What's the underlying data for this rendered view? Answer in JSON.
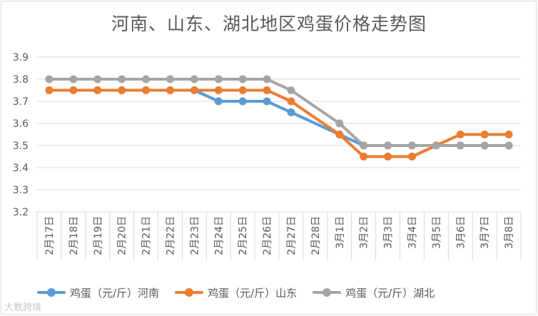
{
  "chart_data": {
    "type": "line",
    "title": "河南、山东、湖北地区鸡蛋价格走势图",
    "categories": [
      "2月17日",
      "2月18日",
      "2月19日",
      "2月20日",
      "2月21日",
      "2月22日",
      "2月23日",
      "2月24日",
      "2月25日",
      "2月26日",
      "2月27日",
      "2月28日",
      "3月1日",
      "3月2日",
      "3月3日",
      "3月4日",
      "3月5日",
      "3月6日",
      "3月7日",
      "3月8日"
    ],
    "ylim": [
      3.2,
      3.9
    ],
    "yticks": [
      "3.2",
      "3.3",
      "3.4",
      "3.5",
      "3.6",
      "3.7",
      "3.8",
      "3.9"
    ],
    "xlabel": "",
    "ylabel": "",
    "grid": true,
    "legend_position": "bottom",
    "series": [
      {
        "name": "鸡蛋（元/斤）河南",
        "color": "#5b9bd5",
        "values": [
          3.75,
          3.75,
          3.75,
          3.75,
          3.75,
          3.75,
          3.75,
          3.7,
          3.7,
          3.7,
          3.65,
          null,
          3.55,
          3.5,
          3.5,
          3.5,
          3.5,
          3.5,
          3.5,
          3.5
        ]
      },
      {
        "name": "鸡蛋（元/斤）山东",
        "color": "#ed7d31",
        "values": [
          3.75,
          3.75,
          3.75,
          3.75,
          3.75,
          3.75,
          3.75,
          3.75,
          3.75,
          3.75,
          3.7,
          null,
          3.55,
          3.45,
          3.45,
          3.45,
          3.5,
          3.55,
          3.55,
          3.55
        ]
      },
      {
        "name": "鸡蛋（元/斤）湖北",
        "color": "#a5a5a5",
        "values": [
          3.8,
          3.8,
          3.8,
          3.8,
          3.8,
          3.8,
          3.8,
          3.8,
          3.8,
          3.8,
          3.75,
          null,
          3.6,
          3.5,
          3.5,
          3.5,
          3.5,
          3.5,
          3.5,
          3.5
        ]
      }
    ]
  },
  "watermark": "大数跨境"
}
